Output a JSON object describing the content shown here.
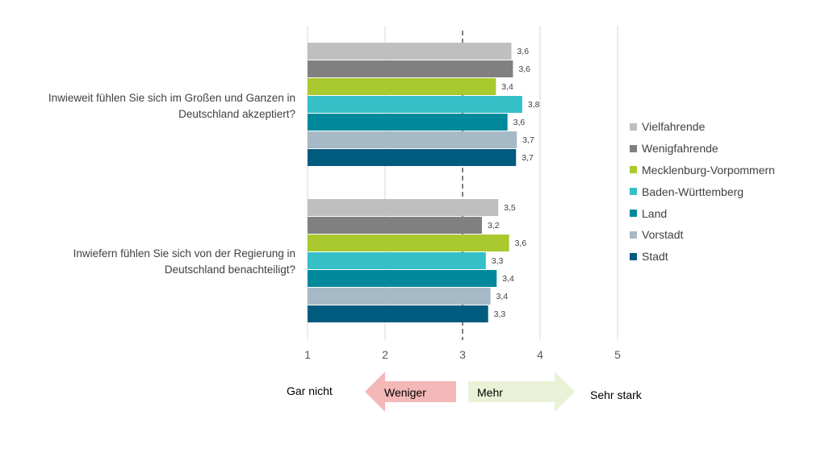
{
  "chart_data": {
    "type": "bar",
    "orientation": "horizontal",
    "categories": [
      "Inwieweit fühlen Sie sich im Großen und Ganzen in Deutschland akzeptiert?",
      "Inwiefern fühlen Sie sich von der Regierung in Deutschland benachteiligt?"
    ],
    "series": [
      {
        "name": "Vielfahrende",
        "color": "#bfbfbf",
        "values": [
          3.63,
          3.46
        ],
        "labels": [
          "3,6",
          "3,5"
        ]
      },
      {
        "name": "Wenigfahrende",
        "color": "#808080",
        "values": [
          3.65,
          3.25
        ],
        "labels": [
          "3,6",
          "3,2"
        ]
      },
      {
        "name": "Mecklenburg-Vorpommern",
        "color": "#a9c92e",
        "values": [
          3.43,
          3.6
        ],
        "labels": [
          "3,4",
          "3,6"
        ]
      },
      {
        "name": "Baden-Württemberg",
        "color": "#35c0c8",
        "values": [
          3.77,
          3.3
        ],
        "labels": [
          "3,8",
          "3,3"
        ]
      },
      {
        "name": "Land",
        "color": "#00899a",
        "values": [
          3.58,
          3.44
        ],
        "labels": [
          "3,6",
          "3,4"
        ]
      },
      {
        "name": "Vorstadt",
        "color": "#a5b9c7",
        "values": [
          3.7,
          3.36
        ],
        "labels": [
          "3,7",
          "3,4"
        ]
      },
      {
        "name": "Stadt",
        "color": "#005b7f",
        "values": [
          3.69,
          3.33
        ],
        "labels": [
          "3,7",
          "3,3"
        ]
      }
    ],
    "xlim": [
      1,
      5
    ],
    "xticks": [
      "1",
      "2",
      "3",
      "4",
      "5"
    ],
    "midline": 3,
    "grid": true,
    "legend_position": "right"
  },
  "scale": {
    "left_label": "Gar nicht",
    "right_label": "Sehr stark",
    "less_label": "Weniger",
    "more_label": "Mehr",
    "less_color": "#f4b8b8",
    "more_color": "#e9f2d6"
  }
}
